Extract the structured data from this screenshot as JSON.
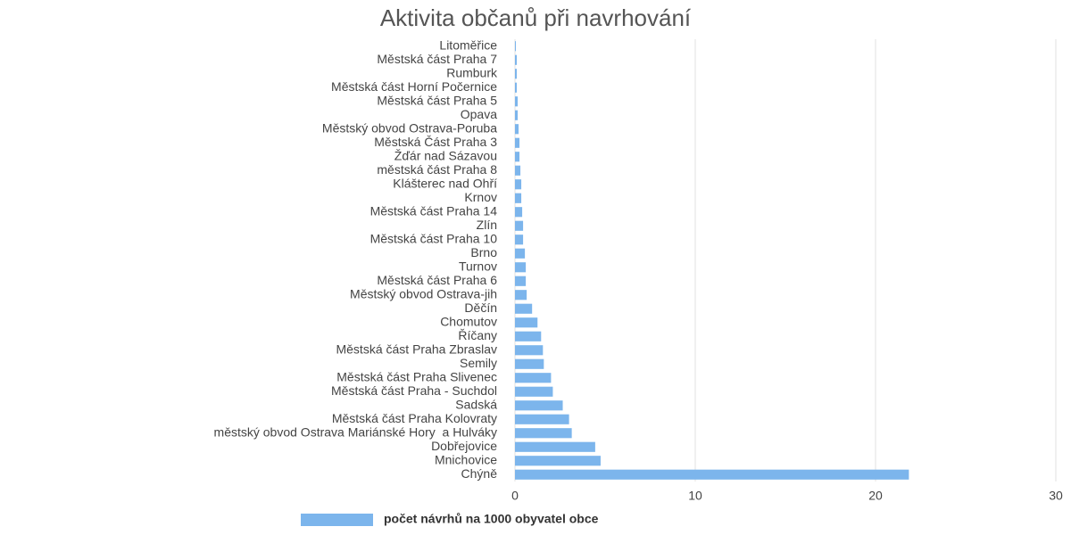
{
  "chart_data": {
    "type": "bar",
    "orientation": "horizontal",
    "title": "Aktivita občanů při navrhování",
    "categories": [
      "Litoměřice",
      "Městská část Praha 7",
      "Rumburk",
      "Městská část Horní Počernice",
      "Městská část Praha 5",
      "Opava",
      "Městský obvod Ostrava-Poruba",
      "Městská Část Praha 3",
      "Žďár nad Sázavou",
      "městská část Praha 8",
      "Klášterec nad Ohří",
      "Krnov",
      "Městská část Praha 14",
      "Zlín",
      "Městská část Praha 10",
      "Brno",
      "Turnov",
      "Městská část Praha 6",
      "Městský obvod Ostrava-jih",
      "Děčín",
      "Chomutov",
      "Říčany",
      "Městská část Praha Zbraslav",
      "Semily",
      "Městská část Praha Slivenec",
      "Městská část Praha - Suchdol",
      "Sadská",
      "Městská část Praha Kolovraty",
      "městský obvod Ostrava Mariánské Hory  a Hulváky",
      "Dobřejovice",
      "Mnichovice",
      "Chýně"
    ],
    "series": [
      {
        "name": "počet návrhů na 1000 obyvatel obce",
        "color": "#7cb5ec",
        "values": [
          0.05,
          0.1,
          0.1,
          0.1,
          0.15,
          0.15,
          0.2,
          0.25,
          0.25,
          0.3,
          0.35,
          0.35,
          0.4,
          0.45,
          0.45,
          0.55,
          0.6,
          0.6,
          0.65,
          0.95,
          1.25,
          1.45,
          1.55,
          1.6,
          2.0,
          2.1,
          2.65,
          3.0,
          3.15,
          4.45,
          4.75,
          21.85
        ]
      }
    ],
    "xlim": [
      0,
      30
    ],
    "xticks": [
      0,
      10,
      20,
      30
    ],
    "grid": true,
    "legend": "bottom"
  }
}
